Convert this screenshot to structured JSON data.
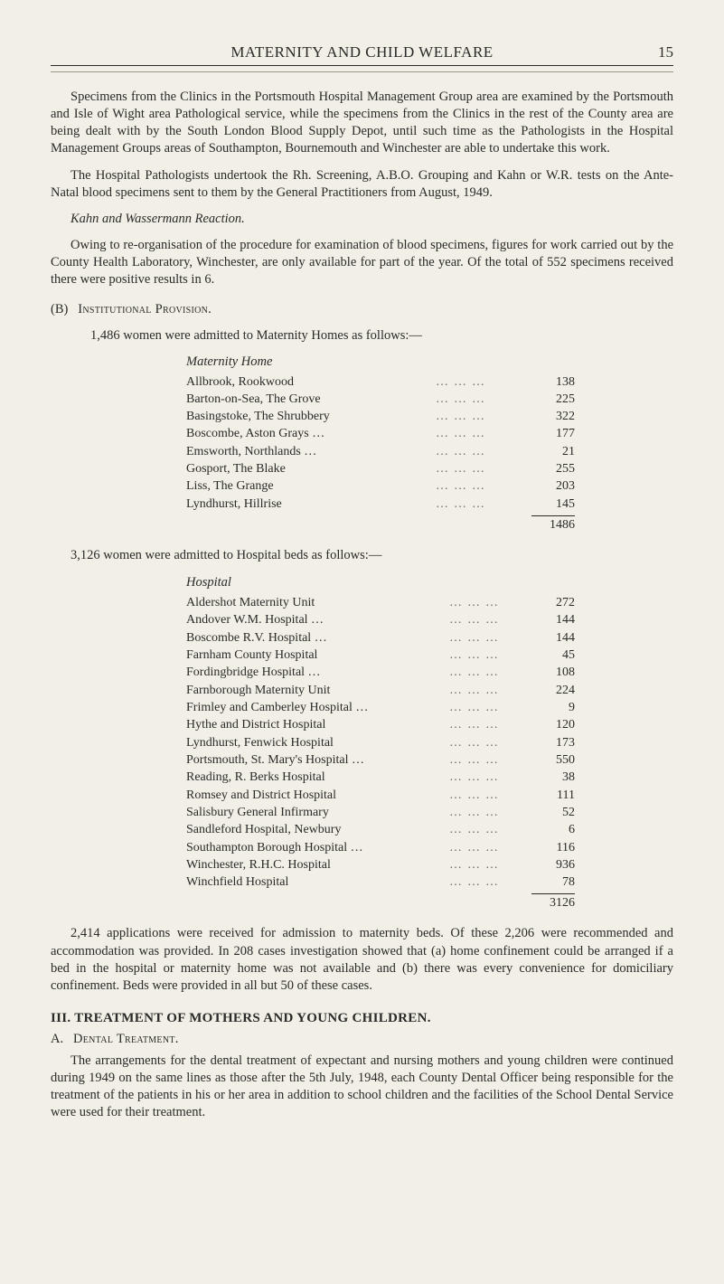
{
  "header": {
    "title": "MATERNITY AND CHILD WELFARE",
    "page_number": "15"
  },
  "para1": "Specimens from the Clinics in the Portsmouth Hospital Management Group area are examined by the Portsmouth and Isle of Wight area Pathological service, while the specimens from the Clinics in the rest of the County area are being dealt with by the South London Blood Supply Depot, until such time as the Pathologists in the Hospital Management Groups areas of Southampton, Bournemouth and Winchester are able to undertake this work.",
  "para2": "The Hospital Pathologists undertook the Rh. Screening, A.B.O. Grouping and Kahn or W.R. tests on the Ante-Natal blood specimens sent to them by the General Practitioners from August, 1949.",
  "kahn_heading": "Kahn and Wassermann Reaction.",
  "para3": "Owing to re-organisation of the procedure for examination of blood specimens, figures for work carried out by the County Health Laboratory, Winchester, are only available for part of the year. Of the total of 552 specimens received there were positive results in 6.",
  "sectionB_lead": "(B)",
  "sectionB_title": "Institutional Provision.",
  "sectionB_intro": "1,486 women were admitted to Maternity Homes as follows:—",
  "maternity_table": {
    "title": "Maternity Home",
    "rows": [
      {
        "label": "Allbrook, Rookwood",
        "value": "138"
      },
      {
        "label": "Barton-on-Sea, The Grove",
        "value": "225"
      },
      {
        "label": "Basingstoke, The Shrubbery",
        "value": "322"
      },
      {
        "label": "Boscombe, Aston Grays …",
        "value": "177"
      },
      {
        "label": "Emsworth, Northlands …",
        "value": "21"
      },
      {
        "label": "Gosport, The Blake",
        "value": "255"
      },
      {
        "label": "Liss, The Grange",
        "value": "203"
      },
      {
        "label": "Lyndhurst, Hillrise",
        "value": "145"
      }
    ],
    "total": "1486"
  },
  "hospital_intro": "3,126 women were admitted to Hospital beds as follows:—",
  "hospital_table": {
    "title": "Hospital",
    "rows": [
      {
        "label": "Aldershot Maternity Unit",
        "value": "272"
      },
      {
        "label": "Andover W.M. Hospital …",
        "value": "144"
      },
      {
        "label": "Boscombe R.V. Hospital …",
        "value": "144"
      },
      {
        "label": "Farnham County Hospital",
        "value": "45"
      },
      {
        "label": "Fordingbridge Hospital …",
        "value": "108"
      },
      {
        "label": "Farnborough Maternity Unit",
        "value": "224"
      },
      {
        "label": "Frimley and Camberley Hospital …",
        "value": "9"
      },
      {
        "label": "Hythe and District Hospital",
        "value": "120"
      },
      {
        "label": "Lyndhurst, Fenwick Hospital",
        "value": "173"
      },
      {
        "label": "Portsmouth, St. Mary's Hospital …",
        "value": "550"
      },
      {
        "label": "Reading, R. Berks Hospital",
        "value": "38"
      },
      {
        "label": "Romsey and District Hospital",
        "value": "111"
      },
      {
        "label": "Salisbury General Infirmary",
        "value": "52"
      },
      {
        "label": "Sandleford Hospital, Newbury",
        "value": "6"
      },
      {
        "label": "Southampton Borough Hospital …",
        "value": "116"
      },
      {
        "label": "Winchester, R.H.C. Hospital",
        "value": "936"
      },
      {
        "label": "Winchfield Hospital",
        "value": "78"
      }
    ],
    "total": "3126"
  },
  "para4": "2,414 applications were received for admission to maternity beds. Of these 2,206 were recommended and accommodation was provided. In 208 cases investigation showed that (a) home confinement could be arranged if a bed in the hospital or maternity home was not available and (b) there was every convenience for domiciliary confinement. Beds were provided in all but 50 of these cases.",
  "sectionIII_title": "III. TREATMENT OF MOTHERS AND YOUNG CHILDREN.",
  "sectionIII_A_lead": "A.",
  "sectionIII_A_title": "Dental Treatment.",
  "para5": "The arrangements for the dental treatment of expectant and nursing mothers and young children were continued during 1949 on the same lines as those after the 5th July, 1948, each County Dental Officer being responsible for the treatment of the patients in his or her area in addition to school children and the facilities of the School Dental Service were used for their treatment."
}
